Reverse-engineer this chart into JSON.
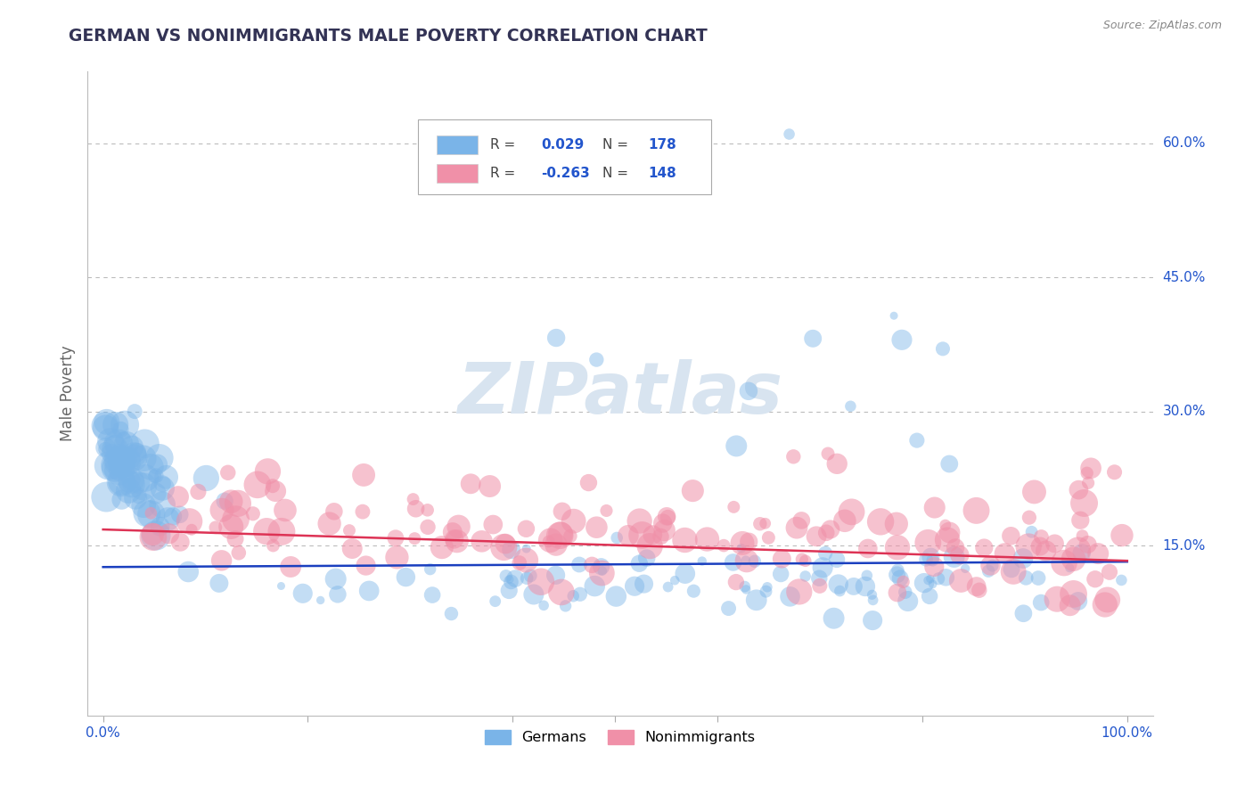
{
  "title": "GERMAN VS NONIMMIGRANTS MALE POVERTY CORRELATION CHART",
  "source": "Source: ZipAtlas.com",
  "ylabel": "Male Poverty",
  "y_tick_values": [
    0.15,
    0.3,
    0.45,
    0.6
  ],
  "y_tick_labels": [
    "15.0%",
    "30.0%",
    "45.0%",
    "60.0%"
  ],
  "german_color": "#7ab4e8",
  "nonimmigrant_color": "#f090a8",
  "german_line_color": "#1a3fbf",
  "nonimmigrant_line_color": "#dd3355",
  "legend_text_color": "#2255cc",
  "watermark_color": "#d8e4f0",
  "background_color": "#ffffff",
  "grid_color": "#bbbbbb",
  "title_color": "#333355",
  "tick_label_color": "#2255cc",
  "source_color": "#888888",
  "ylabel_color": "#666666",
  "R_german": 0.029,
  "N_german": 178,
  "R_nonimmigrant": -0.263,
  "N_nonimmigrant": 148,
  "ylim_min": -0.04,
  "ylim_max": 0.68,
  "xlim_min": -0.015,
  "xlim_max": 1.025
}
